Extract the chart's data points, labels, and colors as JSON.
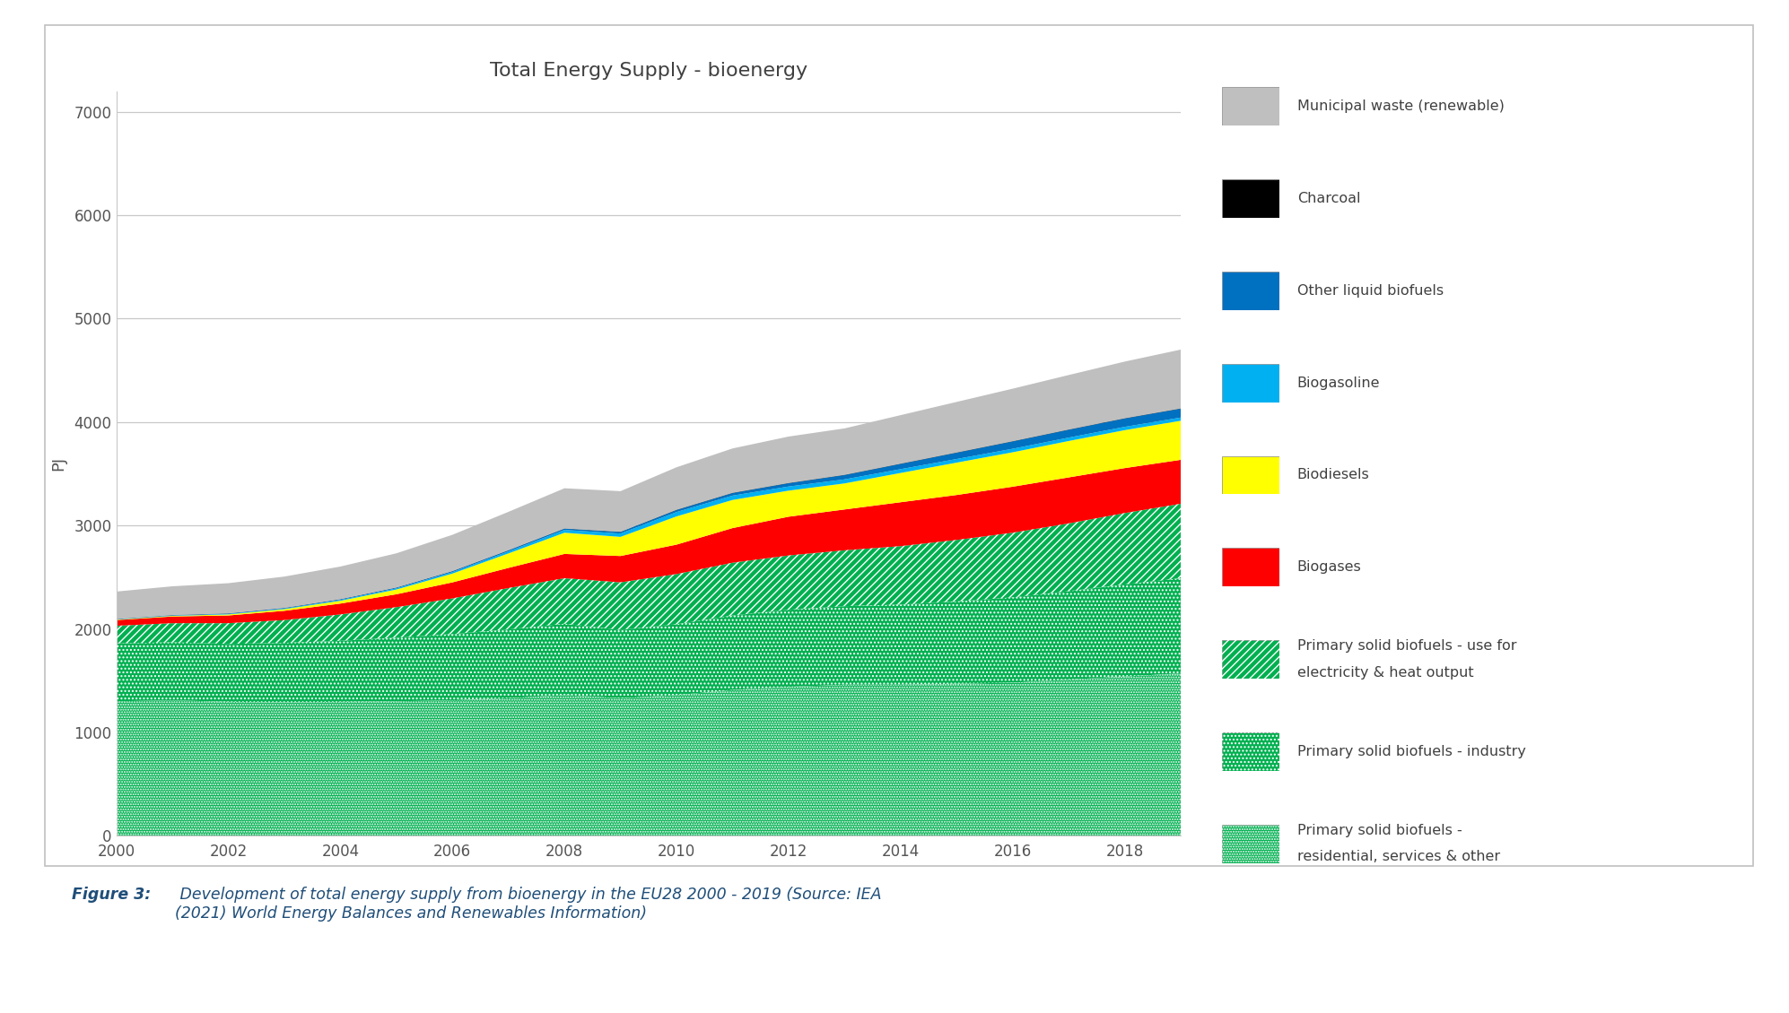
{
  "title": "Total Energy Supply - bioenergy",
  "ylabel": "PJ",
  "years": [
    2000,
    2001,
    2002,
    2003,
    2004,
    2005,
    2006,
    2007,
    2008,
    2009,
    2010,
    2011,
    2012,
    2013,
    2014,
    2015,
    2016,
    2017,
    2018,
    2019
  ],
  "psb_residential": [
    1300,
    1310,
    1295,
    1290,
    1295,
    1300,
    1310,
    1330,
    1360,
    1330,
    1360,
    1410,
    1440,
    1460,
    1460,
    1470,
    1480,
    1510,
    1540,
    1570
  ],
  "psb_industry": [
    560,
    560,
    560,
    575,
    590,
    615,
    640,
    665,
    690,
    660,
    685,
    720,
    745,
    760,
    775,
    795,
    825,
    855,
    890,
    920
  ],
  "psb_elec_heat": [
    170,
    185,
    200,
    220,
    255,
    295,
    345,
    400,
    440,
    460,
    485,
    510,
    525,
    540,
    565,
    595,
    625,
    655,
    690,
    720
  ],
  "biogases": [
    55,
    65,
    75,
    90,
    105,
    125,
    155,
    195,
    235,
    255,
    285,
    335,
    375,
    395,
    425,
    435,
    445,
    445,
    435,
    425
  ],
  "biodiesels": [
    4,
    6,
    10,
    16,
    27,
    46,
    85,
    140,
    205,
    185,
    273,
    272,
    252,
    252,
    283,
    313,
    333,
    352,
    367,
    378
  ],
  "biogasoline": [
    3,
    4,
    5,
    6,
    8,
    11,
    14,
    19,
    27,
    32,
    42,
    42,
    40,
    39,
    37,
    35,
    34,
    33,
    32,
    31
  ],
  "other_liquid": [
    2,
    3,
    4,
    5,
    6,
    7,
    9,
    11,
    13,
    16,
    20,
    25,
    32,
    42,
    51,
    61,
    71,
    76,
    81,
    86
  ],
  "charcoal": [
    2,
    2,
    2,
    2,
    2,
    2,
    2,
    2,
    2,
    2,
    3,
    3,
    3,
    3,
    3,
    3,
    3,
    3,
    3,
    3
  ],
  "municipal_waste": [
    265,
    277,
    291,
    302,
    315,
    330,
    350,
    370,
    388,
    392,
    410,
    428,
    448,
    448,
    468,
    488,
    507,
    526,
    547,
    568
  ],
  "ylim_min": 0,
  "ylim_max": 7200,
  "yticks": [
    0,
    1000,
    2000,
    3000,
    4000,
    5000,
    6000,
    7000
  ],
  "xticks": [
    2000,
    2002,
    2004,
    2006,
    2008,
    2010,
    2012,
    2014,
    2016,
    2018
  ],
  "color_psb_res": "#00b050",
  "color_psb_ind": "#00b050",
  "color_psb_elec": "#00b050",
  "color_biogases": "#ff0000",
  "color_biodiesels": "#ffff00",
  "color_biogasoline": "#00b0f0",
  "color_other_liquid": "#0070c0",
  "color_charcoal": "#000000",
  "color_municipal": "#bfbfbf",
  "legend_labels": [
    "Municipal waste (renewable)",
    "Charcoal",
    "Other liquid biofuels",
    "Biogasoline",
    "Biodiesels",
    "Biogases",
    "Primary solid biofuels - use for\nelectricity & heat output",
    "Primary solid biofuels - industry",
    "Primary solid biofuels -\nresidential, services & other"
  ],
  "caption_bold": "Figure 3:",
  "caption_rest": " Development of total energy supply from bioenergy in the EU28 2000 - 2019 (Source: IEA\n(2021) World Energy Balances and Renewables Information)"
}
